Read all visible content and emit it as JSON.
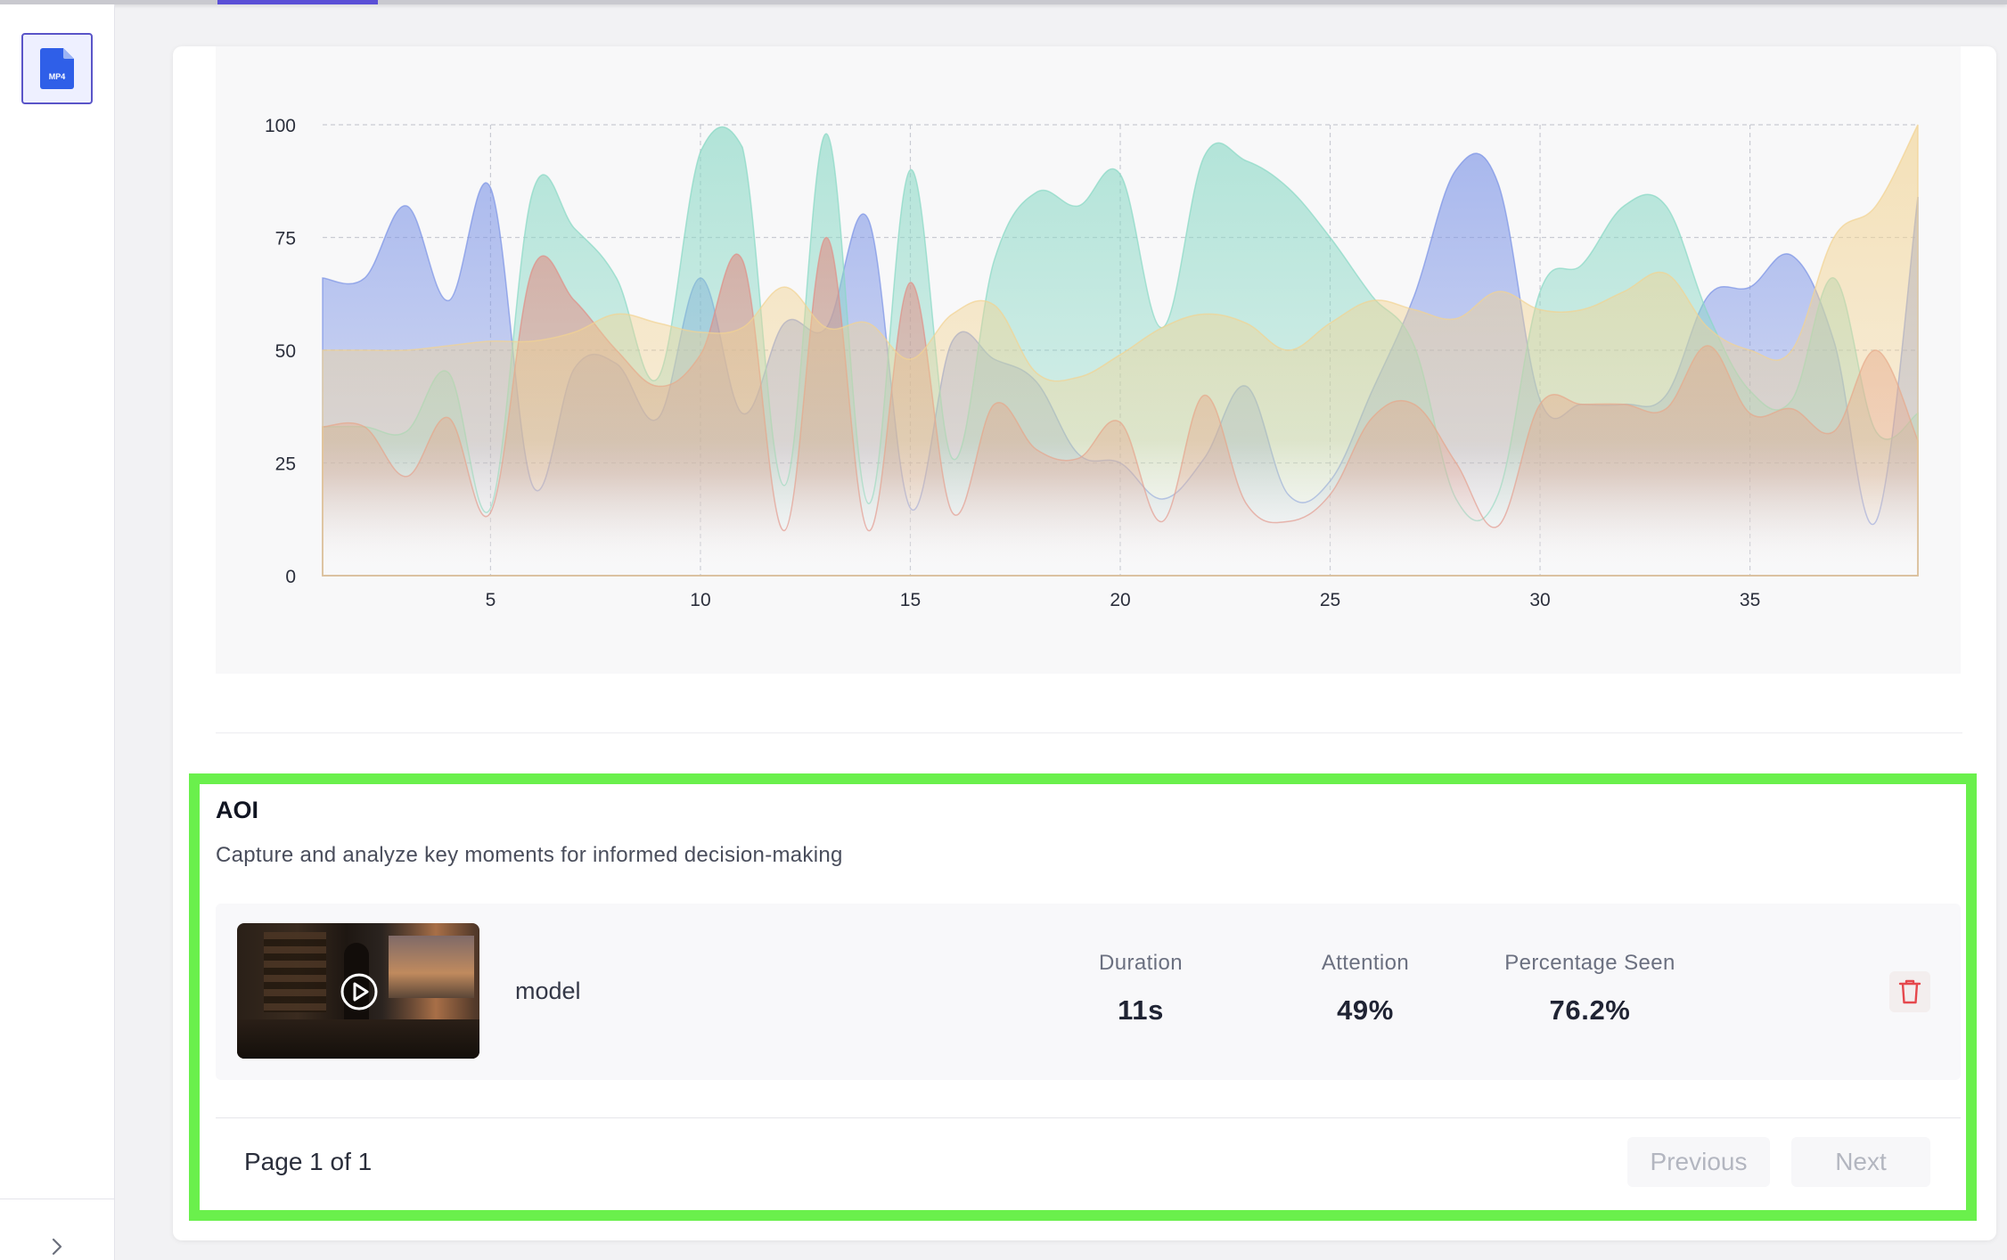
{
  "sidebar": {
    "file_badge": {
      "label": "MP4",
      "icon": "mp4-file-icon",
      "color": "#2563eb"
    },
    "expand_icon": "chevron-right-icon"
  },
  "chart_data": {
    "type": "area",
    "x": [
      1,
      2,
      3,
      4,
      5,
      6,
      7,
      8,
      9,
      10,
      11,
      12,
      13,
      14,
      15,
      16,
      17,
      18,
      19,
      20,
      21,
      22,
      23,
      24,
      25,
      26,
      27,
      28,
      29,
      30,
      31,
      32,
      33,
      34,
      35,
      36,
      37,
      38,
      39
    ],
    "xticks": [
      "5",
      "10",
      "15",
      "20",
      "25",
      "30",
      "35"
    ],
    "yticks": [
      "0",
      "25",
      "50",
      "75",
      "100"
    ],
    "ylim": [
      0,
      100
    ],
    "xlim": [
      1,
      39
    ],
    "grid": true,
    "series": [
      {
        "color": "#7b93e6",
        "values": [
          66,
          66,
          82,
          61,
          86,
          20,
          46,
          47,
          35,
          66,
          36,
          56,
          55,
          79,
          15,
          52,
          48,
          43,
          27,
          25,
          17,
          26,
          42,
          18,
          21,
          41,
          62,
          90,
          87,
          39,
          38,
          38,
          40,
          62,
          64,
          71,
          52,
          12,
          84
        ]
      },
      {
        "color": "#89d8c5",
        "values": [
          33,
          33,
          32,
          45,
          15,
          85,
          77,
          66,
          44,
          94,
          95,
          20,
          98,
          16,
          90,
          26,
          70,
          85,
          82,
          89,
          55,
          93,
          92,
          86,
          75,
          62,
          51,
          17,
          18,
          63,
          69,
          82,
          82,
          58,
          41,
          39,
          66,
          32,
          36
        ]
      },
      {
        "color": "#e08e86",
        "values": [
          33,
          33,
          22,
          35,
          14,
          68,
          61,
          50,
          42,
          49,
          70,
          10,
          75,
          10,
          65,
          14,
          38,
          28,
          26,
          34,
          12,
          40,
          16,
          12,
          18,
          35,
          38,
          25,
          11,
          38,
          38,
          38,
          37,
          51,
          36,
          37,
          32,
          50,
          30
        ]
      },
      {
        "color": "#f2d392",
        "values": [
          50,
          50,
          50,
          51,
          52,
          52,
          54,
          58,
          56,
          54,
          55,
          64,
          55,
          56,
          48,
          58,
          60,
          45,
          44,
          49,
          55,
          58,
          56,
          50,
          56,
          61,
          59,
          57,
          63,
          59,
          59,
          63,
          67,
          55,
          50,
          50,
          75,
          82,
          100
        ]
      }
    ]
  },
  "aoi": {
    "title": "AOI",
    "subtitle": "Capture and analyze key moments for informed decision-making",
    "items": [
      {
        "name": "model",
        "stats": {
          "duration_label": "Duration",
          "duration": "11s",
          "attention_label": "Attention",
          "attention": "49%",
          "seen_label": "Percentage Seen",
          "seen": "76.2%"
        }
      }
    ],
    "pagination": {
      "info": "Page 1 of 1",
      "prev": "Previous",
      "next": "Next"
    }
  }
}
